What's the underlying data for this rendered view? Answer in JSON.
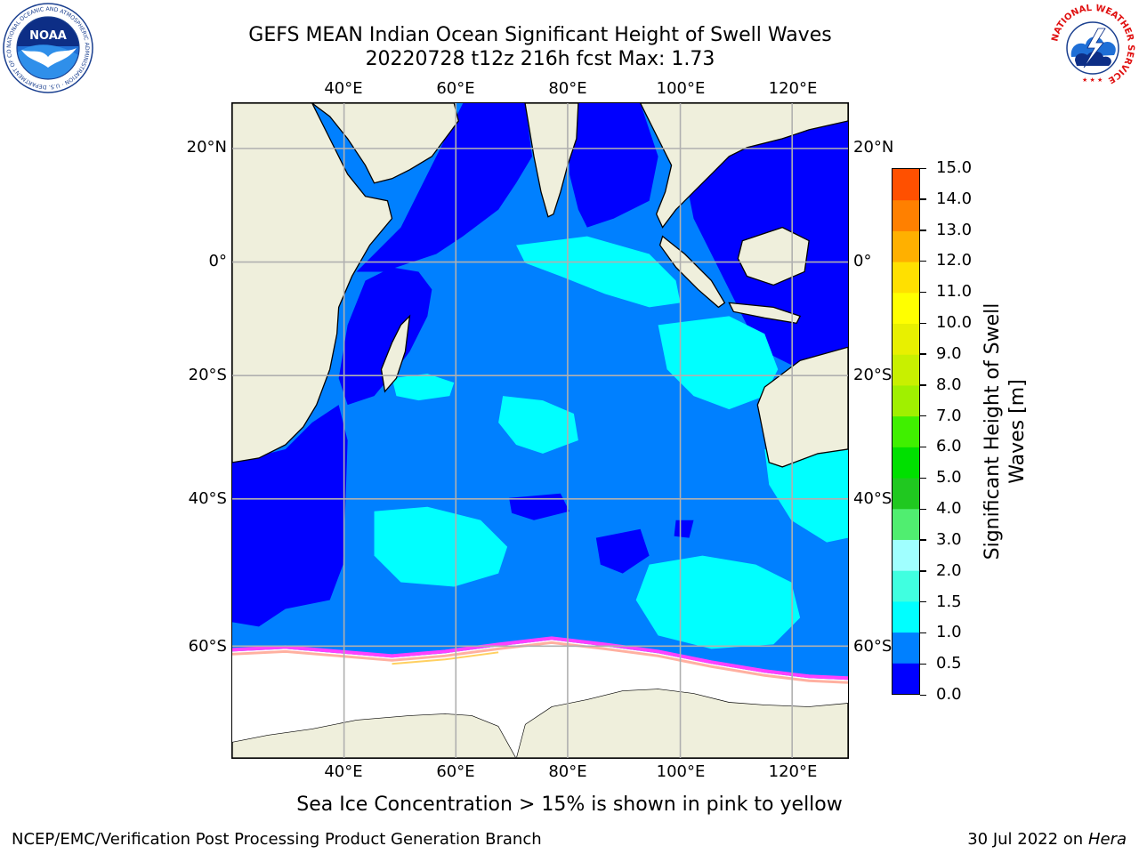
{
  "title": {
    "line1": "GEFS MEAN Indian Ocean Significant Height of Swell Waves",
    "line2": "20220728 t12z 216h fcst   Max: 1.73"
  },
  "logos": {
    "noara": {
      "icon": "noaa-logo-icon",
      "text": "NOAA",
      "ring_text": "NATIONAL OCEANIC AND ATMOSPHERIC ADMINISTRATION · U.S. DEPARTMENT OF COMMERCE"
    },
    "nws": {
      "icon": "nws-logo-icon",
      "ring_text": "NATIONAL WEATHER SERVICE"
    }
  },
  "map": {
    "lon_ticks": [
      "40°E",
      "60°E",
      "80°E",
      "100°E",
      "120°E"
    ],
    "lat_ticks_left": [
      "20°N",
      "0°",
      "20°S",
      "40°S",
      "60°S"
    ],
    "lat_ticks_right": [
      "20°N",
      "0°",
      "20°S",
      "40°S",
      "60°S"
    ],
    "lon_range": [
      20,
      130
    ],
    "lat_range": [
      -72,
      28
    ],
    "grid": true,
    "colors": {
      "land": "#efefdc",
      "ocean_0_05": "#0000ff",
      "ocean_05_1": "#0080ff",
      "ocean_1_15": "#00ffff",
      "ocean_15_2": "#40ffe0",
      "ice": "#ffffff",
      "ice_edge": [
        "#ff40ff",
        "#ff8080",
        "#ffc060",
        "#ffff00"
      ],
      "grid": "#b0b0b0"
    }
  },
  "colorbar": {
    "label": "Significant Height of Swell Waves [m]",
    "label_line1": "Significant Height of Swell",
    "label_line2": "Waves [m]",
    "ticks": [
      "15.0",
      "14.0",
      "13.0",
      "12.0",
      "11.0",
      "10.0",
      "9.0",
      "8.0",
      "7.0",
      "6.0",
      "5.0",
      "4.0",
      "3.0",
      "2.0",
      "1.5",
      "1.0",
      "0.5",
      "0.0"
    ],
    "colors": [
      "#0000ff",
      "#0080ff",
      "#00ffff",
      "#40ffe0",
      "#a0ffff",
      "#50ee70",
      "#20c820",
      "#00e000",
      "#40f000",
      "#a0f000",
      "#c8f000",
      "#e8f000",
      "#ffff00",
      "#ffe000",
      "#ffb000",
      "#ff8000",
      "#ff5000",
      "#ff2000",
      "#ff0000"
    ]
  },
  "footer": {
    "note": "Sea Ice Concentration > 15% is shown in pink to yellow",
    "left": "NCEP/EMC/Verification Post Processing Product Generation Branch",
    "right_date": "30 Jul 2022 on",
    "right_host": "Hera"
  }
}
